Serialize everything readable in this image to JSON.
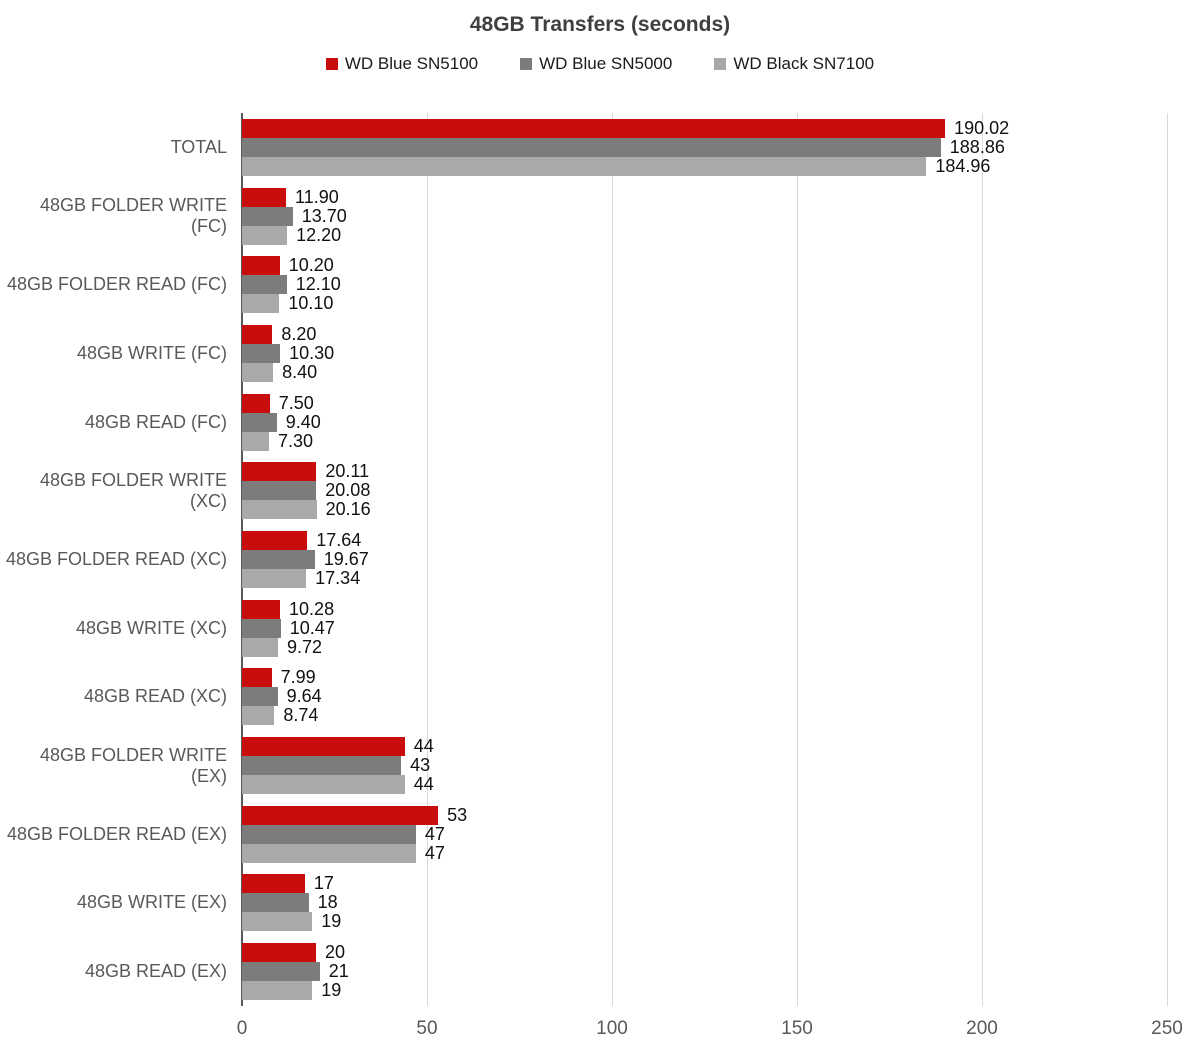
{
  "chart_data": {
    "type": "bar",
    "orientation": "horizontal",
    "title": "48GB Transfers (seconds)",
    "categories": [
      "TOTAL",
      "48GB FOLDER WRITE (FC)",
      "48GB FOLDER READ (FC)",
      "48GB WRITE (FC)",
      "48GB READ (FC)",
      "48GB FOLDER WRITE (XC)",
      "48GB FOLDER READ (XC)",
      "48GB WRITE (XC)",
      "48GB READ (XC)",
      "48GB FOLDER WRITE (EX)",
      "48GB FOLDER READ (EX)",
      "48GB WRITE (EX)",
      "48GB READ (EX)"
    ],
    "series": [
      {
        "name": "WD Blue SN5100",
        "color": "#c90c0c",
        "values": [
          190.02,
          11.9,
          10.2,
          8.2,
          7.5,
          20.11,
          17.64,
          10.28,
          7.99,
          44,
          53,
          17,
          20
        ],
        "labels": [
          "190.02",
          "11.90",
          "10.20",
          "8.20",
          "7.50",
          "20.11",
          "17.64",
          "10.28",
          "7.99",
          "44",
          "53",
          "17",
          "20"
        ]
      },
      {
        "name": "WD Blue SN5000",
        "color": "#7c7c7c",
        "values": [
          188.86,
          13.7,
          12.1,
          10.3,
          9.4,
          20.08,
          19.67,
          10.47,
          9.64,
          43,
          47,
          18,
          21
        ],
        "labels": [
          "188.86",
          "13.70",
          "12.10",
          "10.30",
          "9.40",
          "20.08",
          "19.67",
          "10.47",
          "9.64",
          "43",
          "47",
          "18",
          "21"
        ]
      },
      {
        "name": "WD Black SN7100",
        "color": "#a9a9a9",
        "values": [
          184.96,
          12.2,
          10.1,
          8.4,
          7.3,
          20.16,
          17.34,
          9.72,
          8.74,
          44,
          47,
          19,
          19
        ],
        "labels": [
          "184.96",
          "12.20",
          "10.10",
          "8.40",
          "7.30",
          "20.16",
          "17.34",
          "9.72",
          "8.74",
          "44",
          "47",
          "19",
          "19"
        ]
      }
    ],
    "xlim": [
      0,
      250
    ],
    "x_ticks": [
      0,
      50,
      100,
      150,
      200,
      250
    ],
    "grid": true,
    "legend_position": "top",
    "axis_line_color": "#595959",
    "gridline_color": "#d9d9d9"
  }
}
